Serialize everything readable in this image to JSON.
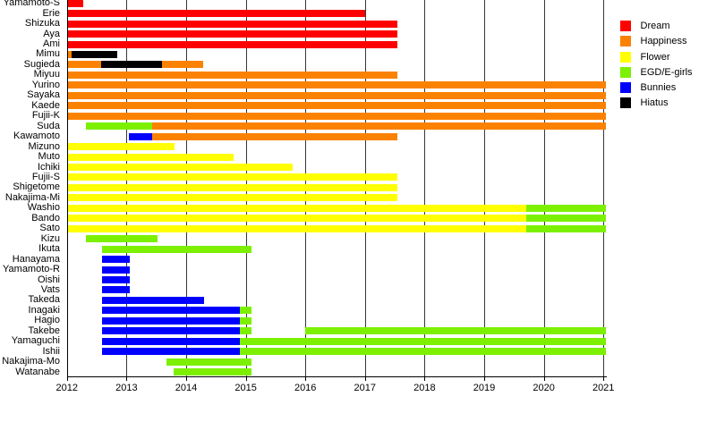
{
  "chart_data": {
    "type": "bar",
    "variant": "timeline_gantt",
    "title": "",
    "xlabel": "",
    "ylabel": "",
    "grid": true,
    "x_axis": {
      "min": 2012,
      "max": 2021.04,
      "ticks": [
        2012,
        2013,
        2014,
        2015,
        2016,
        2017,
        2018,
        2019,
        2020,
        2021
      ]
    },
    "legend": {
      "position": "top-right",
      "items": [
        {
          "label": "Dream",
          "color": "#ff0000"
        },
        {
          "label": "Happiness",
          "color": "#fb8200"
        },
        {
          "label": "Flower",
          "color": "#ffff00"
        },
        {
          "label": "EGD/E-girls",
          "color": "#7cf000"
        },
        {
          "label": "Bunnies",
          "color": "#0000ff"
        },
        {
          "label": "Hiatus",
          "color": "#000000"
        }
      ]
    },
    "members": [
      {
        "name": "Yamamoto-S",
        "segments": [
          {
            "group": "Dream",
            "start": 2012.02,
            "end": 2012.27
          }
        ]
      },
      {
        "name": "Erie",
        "segments": [
          {
            "group": "Dream",
            "start": 2012.02,
            "end": 2017.01
          }
        ]
      },
      {
        "name": "Shizuka",
        "segments": [
          {
            "group": "Dream",
            "start": 2012.02,
            "end": 2017.55
          }
        ]
      },
      {
        "name": "Aya",
        "segments": [
          {
            "group": "Dream",
            "start": 2012.02,
            "end": 2017.55
          }
        ]
      },
      {
        "name": "Ami",
        "segments": [
          {
            "group": "Dream",
            "start": 2012.02,
            "end": 2017.55
          }
        ]
      },
      {
        "name": "Mimu",
        "segments": [
          {
            "group": "Happiness",
            "start": 2012.02,
            "end": 2012.08
          },
          {
            "group": "Hiatus",
            "start": 2012.08,
            "end": 2012.845
          }
        ]
      },
      {
        "name": "Sugieda",
        "segments": [
          {
            "group": "Happiness",
            "start": 2012.02,
            "end": 2012.58
          },
          {
            "group": "Hiatus",
            "start": 2012.58,
            "end": 2013.595
          },
          {
            "group": "Happiness",
            "start": 2013.595,
            "end": 2014.28
          }
        ]
      },
      {
        "name": "Miyuu",
        "segments": [
          {
            "group": "Happiness",
            "start": 2012.02,
            "end": 2017.55
          }
        ]
      },
      {
        "name": "Yurino",
        "segments": [
          {
            "group": "Happiness",
            "start": 2012.02,
            "end": 2021.035
          }
        ]
      },
      {
        "name": "Sayaka",
        "segments": [
          {
            "group": "Happiness",
            "start": 2012.02,
            "end": 2021.035
          }
        ]
      },
      {
        "name": "Kaede",
        "segments": [
          {
            "group": "Happiness",
            "start": 2012.02,
            "end": 2021.035
          }
        ]
      },
      {
        "name": "Fujii-K",
        "segments": [
          {
            "group": "Happiness",
            "start": 2012.02,
            "end": 2021.035
          }
        ]
      },
      {
        "name": "Suda",
        "segments": [
          {
            "group": "EGD/E-girls",
            "start": 2012.312,
            "end": 2013.427
          },
          {
            "group": "Happiness",
            "start": 2013.427,
            "end": 2021.035
          }
        ]
      },
      {
        "name": "Kawamoto",
        "segments": [
          {
            "group": "Bunnies",
            "start": 2013.043,
            "end": 2013.427
          },
          {
            "group": "Happiness",
            "start": 2013.427,
            "end": 2017.55
          }
        ]
      },
      {
        "name": "Mizuno",
        "segments": [
          {
            "group": "Flower",
            "start": 2012.02,
            "end": 2013.8
          }
        ]
      },
      {
        "name": "Muto",
        "segments": [
          {
            "group": "Flower",
            "start": 2012.02,
            "end": 2014.796
          }
        ]
      },
      {
        "name": "Ichiki",
        "segments": [
          {
            "group": "Flower",
            "start": 2012.02,
            "end": 2015.782
          }
        ]
      },
      {
        "name": "Fujii-S",
        "segments": [
          {
            "group": "Flower",
            "start": 2012.02,
            "end": 2017.55
          }
        ]
      },
      {
        "name": "Shigetome",
        "segments": [
          {
            "group": "Flower",
            "start": 2012.02,
            "end": 2017.55
          }
        ]
      },
      {
        "name": "Nakajima-Mi",
        "segments": [
          {
            "group": "Flower",
            "start": 2012.02,
            "end": 2017.55
          }
        ]
      },
      {
        "name": "Washio",
        "segments": [
          {
            "group": "Flower",
            "start": 2012.02,
            "end": 2019.705
          },
          {
            "group": "EGD/E-girls",
            "start": 2019.705,
            "end": 2021.035
          }
        ]
      },
      {
        "name": "Bando",
        "segments": [
          {
            "group": "Flower",
            "start": 2012.02,
            "end": 2019.705
          },
          {
            "group": "EGD/E-girls",
            "start": 2019.705,
            "end": 2021.035
          }
        ]
      },
      {
        "name": "Sato",
        "segments": [
          {
            "group": "Flower",
            "start": 2012.02,
            "end": 2019.705
          },
          {
            "group": "EGD/E-girls",
            "start": 2019.705,
            "end": 2021.035
          }
        ]
      },
      {
        "name": "Kizu",
        "segments": [
          {
            "group": "EGD/E-girls",
            "start": 2012.314,
            "end": 2013.52
          }
        ]
      },
      {
        "name": "Ikuta",
        "segments": [
          {
            "group": "EGD/E-girls",
            "start": 2012.59,
            "end": 2015.096
          }
        ]
      },
      {
        "name": "Hanayama",
        "segments": [
          {
            "group": "Bunnies",
            "start": 2012.59,
            "end": 2013.05
          }
        ]
      },
      {
        "name": "Yamamoto-R",
        "segments": [
          {
            "group": "Bunnies",
            "start": 2012.59,
            "end": 2013.05
          }
        ]
      },
      {
        "name": "Oishi",
        "segments": [
          {
            "group": "Bunnies",
            "start": 2012.59,
            "end": 2013.05
          }
        ]
      },
      {
        "name": "Vats",
        "segments": [
          {
            "group": "Bunnies",
            "start": 2012.59,
            "end": 2013.05
          }
        ]
      },
      {
        "name": "Takeda",
        "segments": [
          {
            "group": "Bunnies",
            "start": 2012.59,
            "end": 2014.308
          }
        ]
      },
      {
        "name": "Inagaki",
        "segments": [
          {
            "group": "Bunnies",
            "start": 2012.59,
            "end": 2014.897
          },
          {
            "group": "EGD/E-girls",
            "start": 2014.897,
            "end": 2015.1
          }
        ]
      },
      {
        "name": "Hagio",
        "segments": [
          {
            "group": "Bunnies",
            "start": 2012.59,
            "end": 2014.897
          },
          {
            "group": "EGD/E-girls",
            "start": 2014.897,
            "end": 2015.1
          }
        ]
      },
      {
        "name": "Takebe",
        "segments": [
          {
            "group": "Bunnies",
            "start": 2012.59,
            "end": 2014.897
          },
          {
            "group": "EGD/E-girls",
            "start": 2014.897,
            "end": 2015.1
          },
          {
            "group": "EGD/E-girls",
            "start": 2015.99,
            "end": 2021.035
          }
        ]
      },
      {
        "name": "Yamaguchi",
        "segments": [
          {
            "group": "Bunnies",
            "start": 2012.59,
            "end": 2014.897
          },
          {
            "group": "EGD/E-girls",
            "start": 2014.897,
            "end": 2021.035
          }
        ]
      },
      {
        "name": "Ishii",
        "segments": [
          {
            "group": "Bunnies",
            "start": 2012.59,
            "end": 2014.897
          },
          {
            "group": "EGD/E-girls",
            "start": 2014.897,
            "end": 2021.035
          }
        ]
      },
      {
        "name": "Nakajima-Mo",
        "segments": [
          {
            "group": "EGD/E-girls",
            "start": 2013.666,
            "end": 2015.096
          }
        ]
      },
      {
        "name": "Watanabe",
        "segments": [
          {
            "group": "EGD/E-girls",
            "start": 2013.786,
            "end": 2015.096
          }
        ]
      }
    ]
  }
}
